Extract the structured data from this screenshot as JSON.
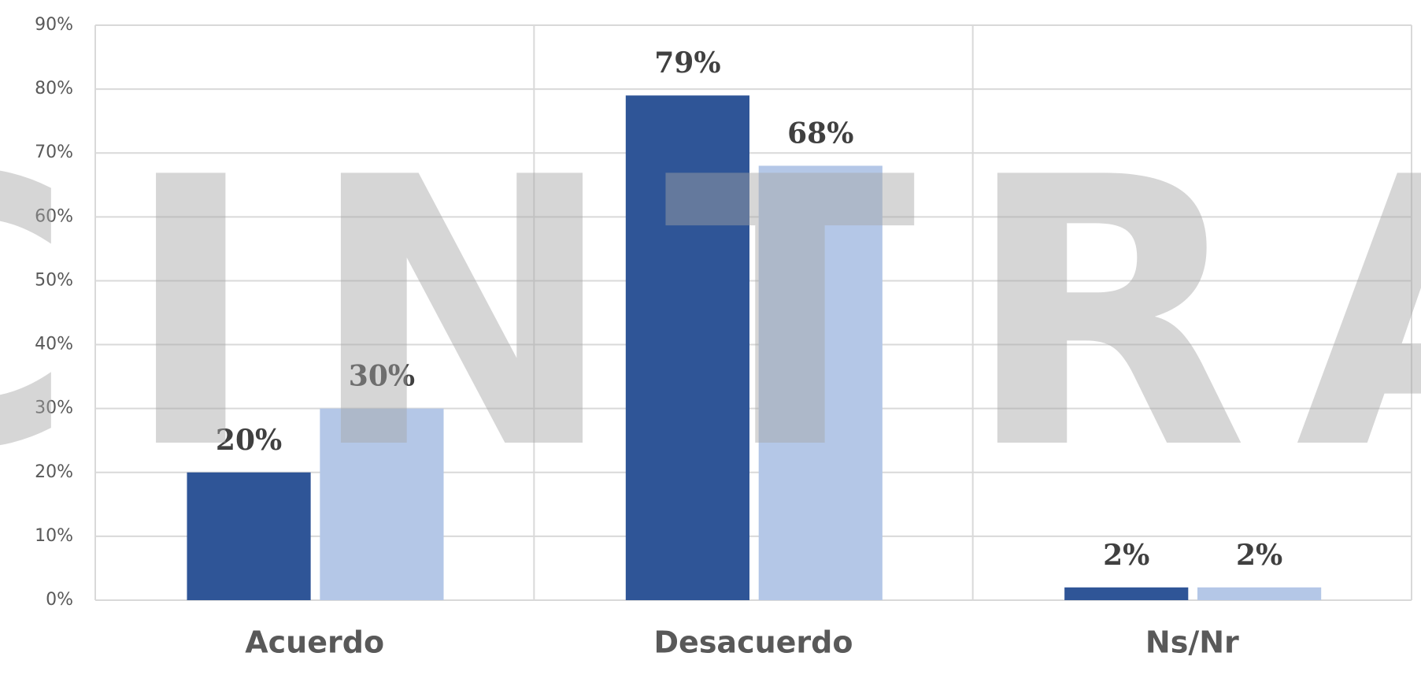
{
  "chart_data": {
    "type": "bar",
    "categories": [
      "Acuerdo",
      "Desacuerdo",
      "Ns/Nr"
    ],
    "series": [
      {
        "color": "#2f5597",
        "values": [
          20,
          79,
          2
        ],
        "value_labels": [
          "20%",
          "79%",
          "2%"
        ]
      },
      {
        "color": "#b4c7e7",
        "values": [
          30,
          68,
          2
        ],
        "value_labels": [
          "30%",
          "68%",
          "2%"
        ]
      }
    ],
    "ylim": [
      0,
      90
    ],
    "yticks": [
      {
        "value": 0,
        "label": "0%"
      },
      {
        "value": 10,
        "label": "10%"
      },
      {
        "value": 20,
        "label": "20%"
      },
      {
        "value": 30,
        "label": "30%"
      },
      {
        "value": 40,
        "label": "40%"
      },
      {
        "value": 50,
        "label": "50%"
      },
      {
        "value": 60,
        "label": "60%"
      },
      {
        "value": 70,
        "label": "70%"
      },
      {
        "value": 80,
        "label": "80%"
      },
      {
        "value": 90,
        "label": "90%"
      }
    ],
    "grid": true,
    "watermark": "CINTRA"
  }
}
